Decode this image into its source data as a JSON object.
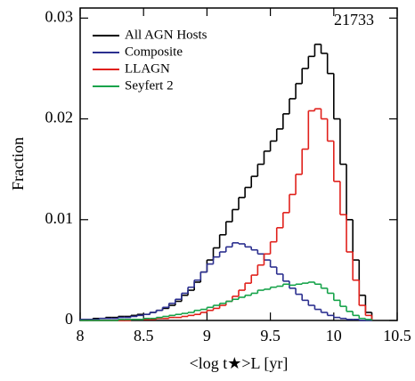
{
  "chart_data": {
    "type": "histogram",
    "xlabel": "<log t★>L [yr]",
    "ylabel": "Fraction",
    "annotation": "21733",
    "xlim": [
      8,
      10.5
    ],
    "ylim": [
      0,
      0.031
    ],
    "xticks": [
      8,
      8.5,
      9,
      9.5,
      10,
      10.5
    ],
    "yticks": [
      0,
      0.01,
      0.02,
      0.03
    ],
    "legend": "upper left",
    "bins": [
      8.0,
      8.05,
      8.1,
      8.15,
      8.2,
      8.25,
      8.3,
      8.35,
      8.4,
      8.45,
      8.5,
      8.55,
      8.6,
      8.65,
      8.7,
      8.75,
      8.8,
      8.85,
      8.9,
      8.95,
      9.0,
      9.05,
      9.1,
      9.15,
      9.2,
      9.25,
      9.3,
      9.35,
      9.4,
      9.45,
      9.5,
      9.55,
      9.6,
      9.65,
      9.7,
      9.75,
      9.8,
      9.85,
      9.9,
      9.95,
      10.0,
      10.05,
      10.1,
      10.15,
      10.2,
      10.25,
      10.3
    ],
    "series": [
      {
        "name": "All AGN Hosts",
        "color": "#000000",
        "values": [
          0.0001,
          0.0001,
          0.0002,
          0.0002,
          0.0003,
          0.0003,
          0.0004,
          0.0004,
          0.0005,
          0.0006,
          0.0006,
          0.0008,
          0.001,
          0.0012,
          0.0015,
          0.0019,
          0.0025,
          0.003,
          0.0038,
          0.0048,
          0.006,
          0.0072,
          0.0085,
          0.0098,
          0.011,
          0.0122,
          0.0132,
          0.0143,
          0.0155,
          0.0168,
          0.0178,
          0.019,
          0.0205,
          0.022,
          0.0235,
          0.025,
          0.0262,
          0.0274,
          0.0265,
          0.0245,
          0.02,
          0.0155,
          0.01,
          0.006,
          0.0025,
          0.0008
        ]
      },
      {
        "name": "Composite",
        "color": "#2b2f8f",
        "values": [
          0.0001,
          0.0001,
          0.0001,
          0.0002,
          0.0002,
          0.0002,
          0.0003,
          0.0003,
          0.0004,
          0.0005,
          0.0006,
          0.0008,
          0.001,
          0.0013,
          0.0017,
          0.0021,
          0.0027,
          0.0033,
          0.004,
          0.0048,
          0.0056,
          0.0063,
          0.0068,
          0.0073,
          0.0077,
          0.0076,
          0.0073,
          0.007,
          0.0066,
          0.006,
          0.0053,
          0.0046,
          0.0039,
          0.0032,
          0.0026,
          0.002,
          0.0015,
          0.0011,
          0.0008,
          0.0005,
          0.0003,
          0.0002,
          0.0001,
          0.0001,
          0,
          0
        ]
      },
      {
        "name": "LLAGN",
        "color": "#e0201b",
        "values": [
          0,
          0,
          0,
          0,
          0,
          0,
          0,
          0,
          0.0001,
          0.0001,
          0.0001,
          0.0001,
          0.0002,
          0.0002,
          0.0003,
          0.0003,
          0.0004,
          0.0005,
          0.0006,
          0.0008,
          0.001,
          0.0012,
          0.0015,
          0.0019,
          0.0024,
          0.003,
          0.0037,
          0.0045,
          0.0055,
          0.0066,
          0.0078,
          0.0092,
          0.0107,
          0.0125,
          0.0145,
          0.017,
          0.0208,
          0.021,
          0.02,
          0.0178,
          0.0138,
          0.0105,
          0.0068,
          0.004,
          0.0015,
          0.0005
        ]
      },
      {
        "name": "Seyfert 2",
        "color": "#16a34a",
        "values": [
          0,
          0,
          0,
          0,
          0,
          0,
          0.0001,
          0.0001,
          0.0001,
          0.0001,
          0.0002,
          0.0002,
          0.0003,
          0.0004,
          0.0005,
          0.0006,
          0.0007,
          0.0008,
          0.001,
          0.0011,
          0.0013,
          0.0015,
          0.0017,
          0.0019,
          0.0021,
          0.0023,
          0.0025,
          0.0027,
          0.003,
          0.0031,
          0.0033,
          0.0034,
          0.0036,
          0.0035,
          0.0036,
          0.0037,
          0.0038,
          0.0036,
          0.0032,
          0.0027,
          0.002,
          0.0014,
          0.0009,
          0.0005,
          0.0002,
          0.0001
        ]
      }
    ]
  }
}
